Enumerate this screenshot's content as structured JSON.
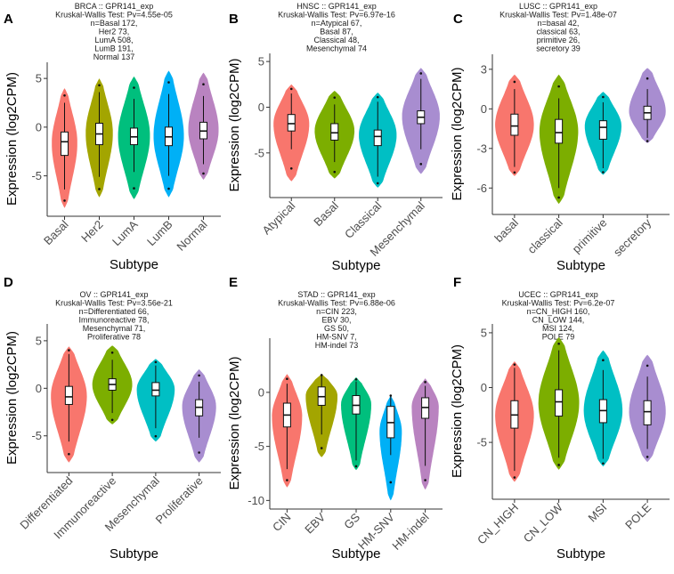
{
  "chart_data": [
    {
      "type": "violin",
      "letter": "A",
      "title_lines": [
        "BRCA :: GPR141_exp",
        "Kruskal-Wallis Test: Pv=4.55e-05",
        "n=Basal 172,",
        "Her2 73,",
        "LumA 508,",
        "LumB 191,",
        "Normal 137"
      ],
      "xlabel": "Subtype",
      "ylabel": "Expression (log2CPM)",
      "ylim": [
        -8.6,
        6.2
      ],
      "yticks": [
        -5,
        0,
        5
      ],
      "groups": [
        {
          "name": "Basal",
          "color": "#F8766D",
          "min": -8.3,
          "max": 4.0,
          "q1": -2.9,
          "median": -1.5,
          "q3": -0.5,
          "whisker": [
            -6.4,
            2.5
          ],
          "mode": -1.6,
          "width": 0.8
        },
        {
          "name": "Her2",
          "color": "#A3A500",
          "min": -7.2,
          "max": 5.0,
          "q1": -1.8,
          "median": -0.7,
          "q3": 0.4,
          "whisker": [
            -5.1,
            3.6
          ],
          "mode": -0.6,
          "width": 0.85
        },
        {
          "name": "LumA",
          "color": "#00BF7D",
          "min": -7.4,
          "max": 5.2,
          "q1": -1.8,
          "median": -1.0,
          "q3": -0.1,
          "whisker": [
            -4.6,
            2.9
          ],
          "mode": -0.9,
          "width": 1.0
        },
        {
          "name": "LumB",
          "color": "#00B0F6",
          "min": -7.2,
          "max": 5.8,
          "q1": -1.9,
          "median": -1.0,
          "q3": 0.0,
          "whisker": [
            -5.0,
            3.4
          ],
          "mode": -0.9,
          "width": 0.95
        },
        {
          "name": "Normal",
          "color": "#E76BF3",
          "fill": "#B983C0",
          "min": -5.4,
          "max": 5.6,
          "q1": -1.2,
          "median": -0.4,
          "q3": 0.5,
          "whisker": [
            -3.8,
            3.2
          ],
          "mode": -0.3,
          "width": 0.95
        }
      ]
    },
    {
      "type": "violin",
      "letter": "B",
      "title_lines": [
        "HNSC :: GPR141_exp",
        "Kruskal-Wallis Test: Pv=6.97e-16",
        "n=Atypical 67,",
        "Basal 87,",
        "Classical 48,",
        "Mesenchymal 74"
      ],
      "xlabel": "Subtype",
      "ylabel": "Expression (log2CPM)",
      "ylim": [
        -9.3,
        5.4
      ],
      "yticks": [
        -5,
        0,
        5
      ],
      "groups": [
        {
          "name": "Atypical",
          "color": "#F8766D",
          "min": -8.1,
          "max": 2.5,
          "q1": -2.6,
          "median": -1.8,
          "q3": -0.8,
          "whisker": [
            -4.6,
            1.5
          ],
          "mode": -1.8,
          "width": 0.9
        },
        {
          "name": "Basal",
          "color": "#7CAE00",
          "min": -7.8,
          "max": 1.8,
          "q1": -3.6,
          "median": -2.8,
          "q3": -1.8,
          "whisker": [
            -6.0,
            0.3
          ],
          "mode": -2.6,
          "width": 1.0
        },
        {
          "name": "Classical",
          "color": "#00BFC4",
          "min": -8.8,
          "max": 1.6,
          "q1": -4.2,
          "median": -3.2,
          "q3": -2.5,
          "whisker": [
            -7.6,
            0.6
          ],
          "mode": -3.0,
          "width": 0.95
        },
        {
          "name": "Mesenchymal",
          "color": "#C77CFF",
          "fill": "#A88DD0",
          "min": -7.3,
          "max": 4.3,
          "q1": -1.8,
          "median": -1.1,
          "q3": -0.4,
          "whisker": [
            -4.6,
            3.1
          ],
          "mode": -1.0,
          "width": 0.95
        }
      ]
    },
    {
      "type": "violin",
      "letter": "C",
      "title_lines": [
        "LUSC :: GPR141_exp",
        "Kruskal-Wallis Test: Pv=1.48e-07",
        "n=basal 42,",
        "classical 63,",
        "primitive 26,",
        "secretory 39"
      ],
      "xlabel": "Subtype",
      "ylabel": "Expression (log2CPM)",
      "ylim": [
        -7.6,
        3.8
      ],
      "yticks": [
        -6,
        -3,
        0,
        3
      ],
      "groups": [
        {
          "name": "basal",
          "color": "#F8766D",
          "min": -5.1,
          "max": 2.6,
          "q1": -2.0,
          "median": -1.3,
          "q3": -0.4,
          "whisker": [
            -4.4,
            1.5
          ],
          "mode": -1.2,
          "width": 0.95
        },
        {
          "name": "classical",
          "color": "#7CAE00",
          "min": -7.2,
          "max": 2.6,
          "q1": -2.6,
          "median": -1.8,
          "q3": -0.8,
          "whisker": [
            -6.0,
            0.8
          ],
          "mode": -1.7,
          "width": 0.95
        },
        {
          "name": "primitive",
          "color": "#00BFC4",
          "min": -5.0,
          "max": 1.3,
          "q1": -2.3,
          "median": -1.4,
          "q3": -0.9,
          "whisker": [
            -4.5,
            0.5
          ],
          "mode": -1.3,
          "width": 0.9
        },
        {
          "name": "secretory",
          "color": "#C77CFF",
          "fill": "#A88DD0",
          "min": -2.6,
          "max": 3.1,
          "q1": -0.8,
          "median": -0.3,
          "q3": 0.2,
          "whisker": [
            -2.2,
            1.5
          ],
          "mode": -0.2,
          "width": 0.9
        }
      ]
    },
    {
      "type": "violin",
      "letter": "D",
      "title_lines": [
        "OV :: GPR141_exp",
        "Kruskal-Wallis Test: Pv=3.56e-21",
        "n=Differentiated 66,",
        "Immunoreactive 78,",
        "Mesenchymal 71,",
        "Proliferative 78"
      ],
      "xlabel": "Subtype",
      "ylabel": "Expression (log2CPM)",
      "ylim": [
        -8.3,
        6.3
      ],
      "yticks": [
        -5,
        0,
        5
      ],
      "groups": [
        {
          "name": "Differentiated",
          "color": "#F8766D",
          "min": -7.8,
          "max": 4.4,
          "q1": -1.7,
          "median": -0.9,
          "q3": 0.2,
          "whisker": [
            -5.6,
            3.6
          ],
          "mode": -0.8,
          "width": 0.9
        },
        {
          "name": "Immunoreactive",
          "color": "#7CAE00",
          "min": -3.8,
          "max": 4.5,
          "q1": -0.2,
          "median": 0.4,
          "q3": 1.0,
          "whisker": [
            -2.6,
            3.0
          ],
          "mode": 0.4,
          "width": 1.0
        },
        {
          "name": "Mesenchymal",
          "color": "#00BFC4",
          "min": -5.6,
          "max": 3.1,
          "q1": -0.8,
          "median": -0.2,
          "q3": 0.6,
          "whisker": [
            -4.2,
            2.4
          ],
          "mode": -0.1,
          "width": 0.95
        },
        {
          "name": "Proliferative",
          "color": "#C77CFF",
          "fill": "#A88DD0",
          "min": -7.8,
          "max": 2.0,
          "q1": -2.9,
          "median": -2.0,
          "q3": -1.2,
          "whisker": [
            -5.2,
            0.7
          ],
          "mode": -1.9,
          "width": 0.85
        }
      ]
    },
    {
      "type": "violin",
      "letter": "E",
      "title_lines": [
        "STAD :: GPR141_exp",
        "Kruskal-Wallis Test: Pv=6.88e-06",
        "n=CIN 223,",
        "EBV 30,",
        "GS 50,",
        "HM-SNV 7,",
        "HM-indel 73"
      ],
      "xlabel": "Subtype",
      "ylabel": "Expression (log2CPM)",
      "ylim": [
        -10.3,
        4.6
      ],
      "yticks": [
        -10,
        -5,
        0
      ],
      "groups": [
        {
          "name": "CIN",
          "color": "#F8766D",
          "min": -8.8,
          "max": 1.7,
          "q1": -3.2,
          "median": -2.1,
          "q3": -1.0,
          "whisker": [
            -7.1,
            0.8
          ],
          "mode": -2.2,
          "width": 0.95
        },
        {
          "name": "EBV",
          "color": "#A3A500",
          "min": -6.0,
          "max": 1.7,
          "q1": -1.2,
          "median": -0.4,
          "q3": 0.5,
          "whisker": [
            -3.9,
            1.5
          ],
          "mode": -0.3,
          "width": 1.0
        },
        {
          "name": "GS",
          "color": "#00BF7D",
          "min": -7.2,
          "max": 1.4,
          "q1": -2.0,
          "median": -1.2,
          "q3": -0.3,
          "whisker": [
            -6.3,
            1.0
          ],
          "mode": -1.1,
          "width": 0.95
        },
        {
          "name": "HM-SNV",
          "color": "#00B0F6",
          "min": -10.0,
          "max": -0.3,
          "q1": -4.2,
          "median": -2.8,
          "q3": -1.3,
          "whisker": [
            -5.8,
            -0.3
          ],
          "mode": -3.6,
          "width": 0.7
        },
        {
          "name": "HM-indel",
          "color": "#E76BF3",
          "fill": "#B983C0",
          "min": -9.0,
          "max": 1.3,
          "q1": -2.4,
          "median": -1.4,
          "q3": -0.5,
          "whisker": [
            -6.8,
            0.6
          ],
          "mode": -1.3,
          "width": 0.85
        }
      ]
    },
    {
      "type": "violin",
      "letter": "F",
      "title_lines": [
        "UCEC :: GPR141_exp",
        "Kruskal-Wallis Test: Pv=6.2e-07",
        "n=CN_HIGH 160,",
        "CN_LOW 144,",
        "MSI 124,",
        "POLE 79"
      ],
      "xlabel": "Subtype",
      "ylabel": "Expression (log2CPM)",
      "ylim": [
        -9.7,
        5.4
      ],
      "yticks": [
        -5,
        0,
        5
      ],
      "groups": [
        {
          "name": "CN_HIGH",
          "color": "#F8766D",
          "min": -8.6,
          "max": 2.4,
          "q1": -3.7,
          "median": -2.5,
          "q3": -1.2,
          "whisker": [
            -7.6,
            1.8
          ],
          "mode": -2.5,
          "width": 0.95
        },
        {
          "name": "CN_LOW",
          "color": "#7CAE00",
          "min": -7.5,
          "max": 4.6,
          "q1": -2.6,
          "median": -1.3,
          "q3": -0.2,
          "whisker": [
            -6.4,
            3.4
          ],
          "mode": -1.4,
          "width": 1.0
        },
        {
          "name": "MSI",
          "color": "#00BFC4",
          "min": -7.2,
          "max": 3.4,
          "q1": -3.2,
          "median": -2.1,
          "q3": -1.1,
          "whisker": [
            -6.5,
            1.6
          ],
          "mode": -2.1,
          "width": 0.95
        },
        {
          "name": "POLE",
          "color": "#C77CFF",
          "fill": "#A88DD0",
          "min": -6.8,
          "max": 3.0,
          "q1": -3.4,
          "median": -2.2,
          "q3": -1.2,
          "whisker": [
            -5.6,
            1.0
          ],
          "mode": -2.2,
          "width": 0.9
        }
      ]
    }
  ]
}
